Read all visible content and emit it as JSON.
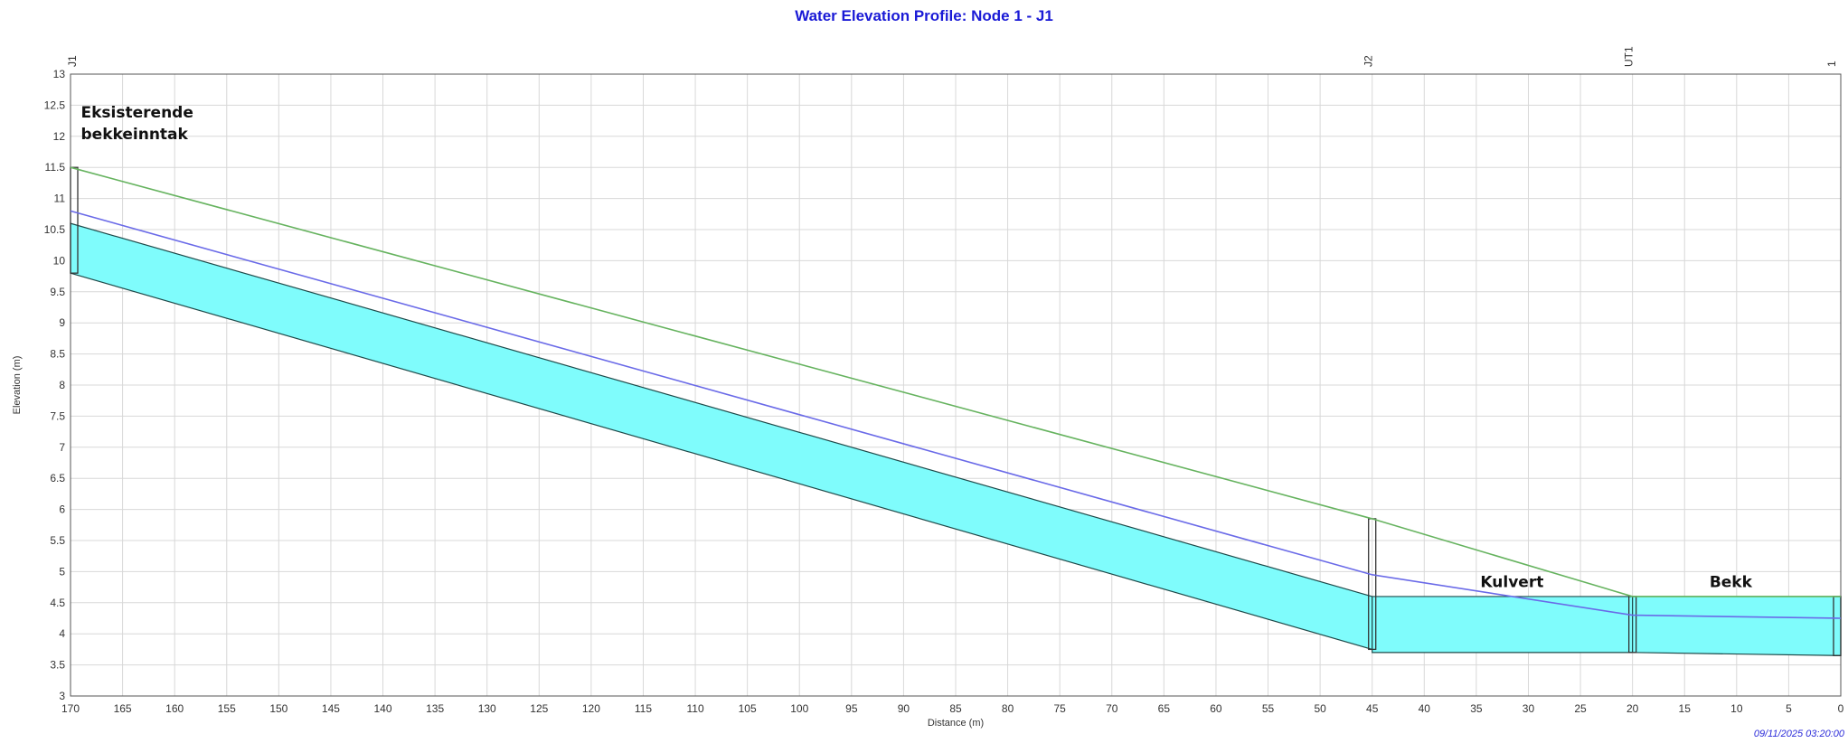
{
  "chart_data": {
    "type": "area",
    "title": "Water Elevation Profile: Node 1 - J1",
    "xlabel": "Distance (m)",
    "ylabel": "Elevation (m)",
    "xlim": [
      170,
      0
    ],
    "ylim": [
      3,
      13
    ],
    "x_ticks": [
      170,
      165,
      160,
      155,
      150,
      145,
      140,
      135,
      130,
      125,
      120,
      115,
      110,
      105,
      100,
      95,
      90,
      85,
      80,
      75,
      70,
      65,
      60,
      55,
      50,
      45,
      40,
      35,
      30,
      25,
      20,
      15,
      10,
      5,
      0
    ],
    "y_ticks": [
      3,
      3.5,
      4,
      4.5,
      5,
      5.5,
      6,
      6.5,
      7,
      7.5,
      8,
      8.5,
      9,
      9.5,
      10,
      10.5,
      11,
      11.5,
      12,
      12.5,
      13
    ],
    "grid": true,
    "nodes": [
      {
        "label": "J1",
        "x": 170,
        "invert": 9.8,
        "rim": 11.5
      },
      {
        "label": "J2",
        "x": 45,
        "invert": 3.75,
        "rim": 5.85
      },
      {
        "label": "UT1",
        "x": 20,
        "invert": 3.7,
        "rim": 4.6
      },
      {
        "label": "1",
        "x": 0,
        "invert": 3.65,
        "rim": 4.6
      }
    ],
    "conduits": [
      {
        "from": 170,
        "to": 45,
        "invert": [
          9.8,
          3.75
        ],
        "crown": [
          10.6,
          4.6
        ]
      },
      {
        "from": 45,
        "to": 20,
        "invert": [
          3.7,
          3.7
        ],
        "crown": [
          4.6,
          4.6
        ]
      },
      {
        "from": 20,
        "to": 0,
        "invert": [
          3.7,
          3.65
        ],
        "crown": [
          4.6,
          4.6
        ]
      }
    ],
    "series": [
      {
        "name": "Water Elevation",
        "color": "#6a6ae8",
        "x": [
          170,
          45,
          20,
          0
        ],
        "y": [
          10.8,
          4.95,
          4.3,
          4.25
        ]
      },
      {
        "name": "Ground",
        "color": "#66b35f",
        "x": [
          170,
          45,
          20,
          0
        ],
        "y": [
          11.5,
          5.85,
          4.6,
          4.6
        ]
      }
    ],
    "fill_color": "#7ffcfc",
    "annotations": [
      {
        "text": "Eksisterende",
        "x": 169,
        "y": 12.3
      },
      {
        "text": "bekkeinntak",
        "x": 169,
        "y": 11.95
      },
      {
        "text": "Kulvert",
        "x": 32,
        "y": 4.75
      },
      {
        "text": "Bekk",
        "x": 10,
        "y": 4.75
      }
    ]
  },
  "timestamp": "09/11/2025 03:20:00"
}
